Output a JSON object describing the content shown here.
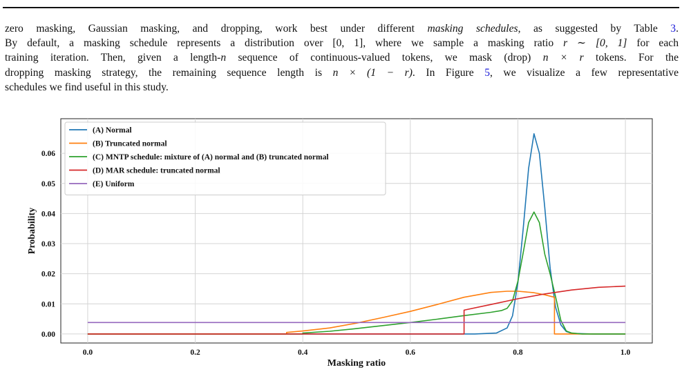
{
  "paragraph": {
    "lines": [
      [
        "zero masking, Gaussian masking, and dropping, work best under different ",
        "masking schedules",
        ", as suggested by Table ",
        "3",
        "."
      ],
      [
        "By default, a masking schedule represents a distribution over ",
        "[0, 1]",
        ", where we sample a masking ratio ",
        "r ∼ [0, 1]",
        " for each"
      ],
      [
        "training iteration. Then, given a length-",
        "n",
        " sequence of continuous-valued tokens, we mask (drop) ",
        "n × r",
        " tokens. For the"
      ],
      [
        "dropping masking strategy, the remaining sequence length is ",
        "n × (1 − r)",
        ". In Figure ",
        "5",
        ", we visualize a few representative"
      ],
      [
        "schedules we find useful in this study."
      ]
    ]
  },
  "chart_data": {
    "type": "line",
    "xlabel": "Masking ratio",
    "ylabel": "Probability",
    "xlim": [
      -0.05,
      1.05
    ],
    "ylim": [
      -0.003,
      0.0715
    ],
    "xticks": [
      0.0,
      0.2,
      0.4,
      0.6,
      0.8,
      1.0
    ],
    "xtick_labels": [
      "0.0",
      "0.2",
      "0.4",
      "0.6",
      "0.8",
      "1.0"
    ],
    "yticks": [
      0.0,
      0.01,
      0.02,
      0.03,
      0.04,
      0.05,
      0.06
    ],
    "ytick_labels": [
      "0.00",
      "0.01",
      "0.02",
      "0.03",
      "0.04",
      "0.05",
      "0.06"
    ],
    "grid": true,
    "legend_position": "top-left",
    "series": [
      {
        "name": "(A) Normal",
        "color": "#1f77b4",
        "x": [
          0.0,
          0.72,
          0.76,
          0.78,
          0.79,
          0.8,
          0.81,
          0.82,
          0.83,
          0.84,
          0.85,
          0.86,
          0.87,
          0.88,
          0.89,
          0.9,
          0.94,
          1.0
        ],
        "y": [
          0.0,
          0.0,
          0.0003,
          0.002,
          0.006,
          0.017,
          0.035,
          0.055,
          0.0665,
          0.06,
          0.042,
          0.022,
          0.009,
          0.003,
          0.0008,
          0.0002,
          0.0,
          0.0
        ]
      },
      {
        "name": "(B) Truncated normal",
        "color": "#ff7f0e",
        "x": [
          0.0,
          0.37,
          0.37,
          0.4,
          0.45,
          0.5,
          0.55,
          0.6,
          0.65,
          0.7,
          0.75,
          0.78,
          0.8,
          0.83,
          0.85,
          0.868,
          0.868,
          1.0
        ],
        "y": [
          0.0,
          0.0,
          0.0005,
          0.001,
          0.002,
          0.0036,
          0.0055,
          0.0075,
          0.0098,
          0.0122,
          0.0138,
          0.0142,
          0.0142,
          0.0137,
          0.013,
          0.0122,
          0.0,
          0.0
        ]
      },
      {
        "name": "(C) MNTP schedule: mixture of (A) normal and (B) truncated normal",
        "color": "#2ca02c",
        "x": [
          0.0,
          0.4,
          0.4,
          0.45,
          0.5,
          0.55,
          0.6,
          0.65,
          0.7,
          0.75,
          0.77,
          0.78,
          0.79,
          0.8,
          0.81,
          0.82,
          0.83,
          0.84,
          0.85,
          0.86,
          0.87,
          0.88,
          0.89,
          0.9,
          0.92,
          1.0
        ],
        "y": [
          0.0,
          0.0,
          0.0003,
          0.0009,
          0.0018,
          0.0028,
          0.0038,
          0.0049,
          0.0061,
          0.0072,
          0.0078,
          0.0085,
          0.011,
          0.0175,
          0.027,
          0.037,
          0.0405,
          0.037,
          0.0265,
          0.02,
          0.0125,
          0.0045,
          0.001,
          0.0003,
          0.0,
          0.0
        ]
      },
      {
        "name": "(D) MAR schedule: truncated normal",
        "color": "#d62728",
        "x": [
          0.0,
          0.7,
          0.7,
          0.75,
          0.8,
          0.85,
          0.9,
          0.95,
          1.0
        ],
        "y": [
          0.0,
          0.0,
          0.0079,
          0.0098,
          0.0117,
          0.0133,
          0.0146,
          0.0155,
          0.0159
        ]
      },
      {
        "name": "(E) Uniform",
        "color": "#9467bd",
        "x": [
          0.0,
          1.0
        ],
        "y": [
          0.0038,
          0.0038
        ]
      }
    ]
  }
}
